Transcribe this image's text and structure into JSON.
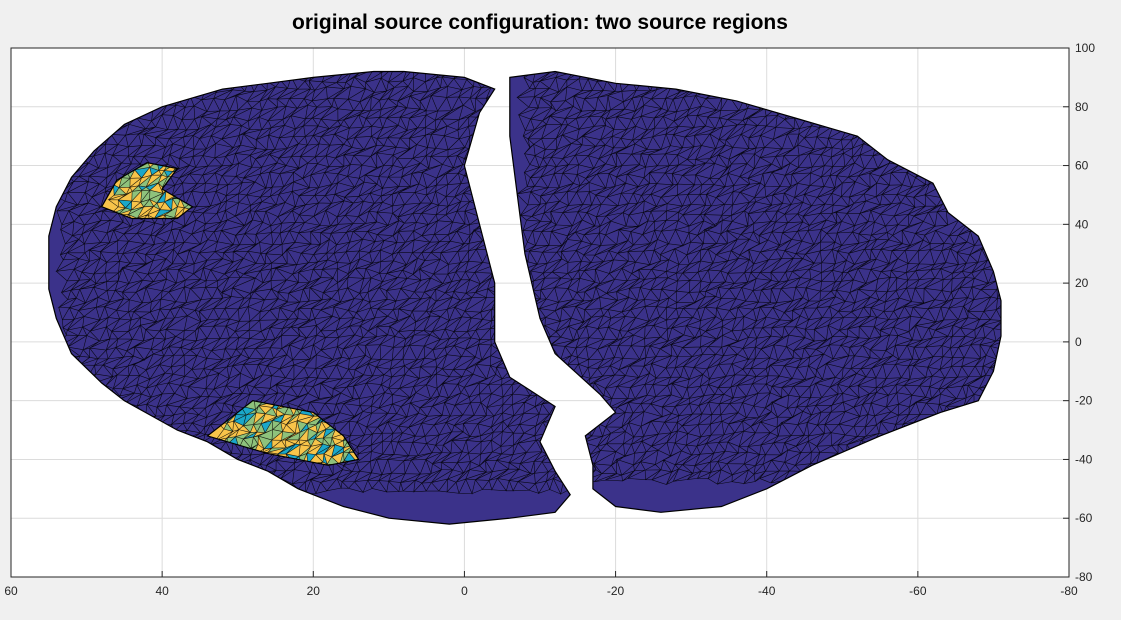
{
  "chart_data": {
    "type": "surface-mesh",
    "title": "original source configuration: two source regions",
    "xlabel": "",
    "ylabel": "",
    "xlim": [
      60,
      -80
    ],
    "ylim": [
      -80,
      100
    ],
    "x_direction": "reversed",
    "y_axis_location": "right",
    "grid": true,
    "x_ticks": [
      60,
      40,
      20,
      0,
      -20,
      -40,
      -60,
      -80
    ],
    "x_tick_labels": [
      "60",
      "40",
      "20",
      "0",
      "-20",
      "-40",
      "-60",
      "-80"
    ],
    "y_ticks": [
      -80,
      -60,
      -40,
      -20,
      0,
      20,
      40,
      60,
      80,
      100
    ],
    "y_tick_labels": [
      "-80",
      "-60",
      "-40",
      "-20",
      "0",
      "20",
      "40",
      "60",
      "80",
      "100"
    ],
    "colors": {
      "figure_background": "#f0f0f0",
      "axes_background": "#ffffff",
      "grid": "#dcdcdc",
      "surface": "#3b328a",
      "mesh_edges": "#000000",
      "source_yellow": "#f8c44a",
      "source_green": "#8ec27c",
      "source_cyan": "#1aa7c9"
    },
    "surfaces": [
      {
        "name": "left-hemisphere",
        "outline": [
          [
            8,
            92
          ],
          [
            12,
            92
          ],
          [
            20,
            90
          ],
          [
            26,
            88
          ],
          [
            32,
            86
          ],
          [
            40,
            80
          ],
          [
            45,
            74
          ],
          [
            49,
            65
          ],
          [
            52,
            56
          ],
          [
            54,
            46
          ],
          [
            55,
            36
          ],
          [
            55,
            26
          ],
          [
            55,
            18
          ],
          [
            54,
            8
          ],
          [
            52,
            -4
          ],
          [
            48,
            -14
          ],
          [
            45,
            -20
          ],
          [
            38,
            -30
          ],
          [
            34,
            -34
          ],
          [
            30,
            -40
          ],
          [
            26,
            -44
          ],
          [
            22,
            -50
          ],
          [
            16,
            -56
          ],
          [
            10,
            -60
          ],
          [
            2,
            -62
          ],
          [
            -6,
            -60
          ],
          [
            -12,
            -58
          ],
          [
            -14,
            -52
          ],
          [
            -12,
            -44
          ],
          [
            -10,
            -34
          ],
          [
            -12,
            -22
          ],
          [
            -6,
            -12
          ],
          [
            -4,
            0
          ],
          [
            -4,
            20
          ],
          [
            -2,
            40
          ],
          [
            0,
            60
          ],
          [
            -2,
            78
          ],
          [
            -4,
            86
          ],
          [
            0,
            90
          ]
        ]
      },
      {
        "name": "right-hemisphere",
        "outline": [
          [
            -6,
            90
          ],
          [
            -12,
            92
          ],
          [
            -20,
            88
          ],
          [
            -28,
            86
          ],
          [
            -36,
            82
          ],
          [
            -44,
            76
          ],
          [
            -52,
            70
          ],
          [
            -56,
            62
          ],
          [
            -62,
            54
          ],
          [
            -64,
            44
          ],
          [
            -68,
            36
          ],
          [
            -70,
            24
          ],
          [
            -71,
            14
          ],
          [
            -71,
            2
          ],
          [
            -70,
            -10
          ],
          [
            -68,
            -20
          ],
          [
            -63,
            -24
          ],
          [
            -55,
            -32
          ],
          [
            -46,
            -42
          ],
          [
            -40,
            -50
          ],
          [
            -34,
            -56
          ],
          [
            -26,
            -58
          ],
          [
            -20,
            -56
          ],
          [
            -17,
            -50
          ],
          [
            -17,
            -42
          ],
          [
            -16,
            -32
          ],
          [
            -20,
            -24
          ],
          [
            -18,
            -18
          ],
          [
            -12,
            -4
          ],
          [
            -10,
            8
          ],
          [
            -8,
            30
          ],
          [
            -7,
            50
          ],
          [
            -6,
            70
          ],
          [
            -6,
            82
          ]
        ]
      }
    ],
    "source_regions": [
      {
        "name": "source-region-1",
        "outline": [
          [
            46,
            55
          ],
          [
            42,
            61
          ],
          [
            38,
            59
          ],
          [
            40,
            52
          ],
          [
            36,
            46
          ],
          [
            38,
            42
          ],
          [
            44,
            42
          ],
          [
            48,
            46
          ]
        ]
      },
      {
        "name": "source-region-2",
        "outline": [
          [
            32,
            -28
          ],
          [
            28,
            -20
          ],
          [
            20,
            -24
          ],
          [
            16,
            -32
          ],
          [
            14,
            -40
          ],
          [
            18,
            -42
          ],
          [
            26,
            -38
          ],
          [
            34,
            -32
          ]
        ]
      }
    ]
  }
}
